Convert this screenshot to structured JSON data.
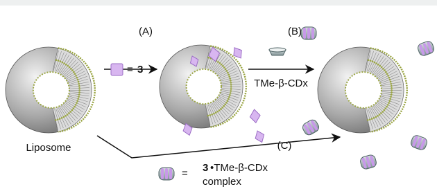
{
  "steps": {
    "a": "(A)",
    "b": "(B)",
    "c": "(C)"
  },
  "reagent": "TMe-β-CDx",
  "liposome_label": "Liposome",
  "key_compound": {
    "equals": "=",
    "number": "3"
  },
  "key_complex": {
    "equals": "=",
    "number": "3",
    "name": "•TMe-β-CDx",
    "line2": "complex"
  }
}
